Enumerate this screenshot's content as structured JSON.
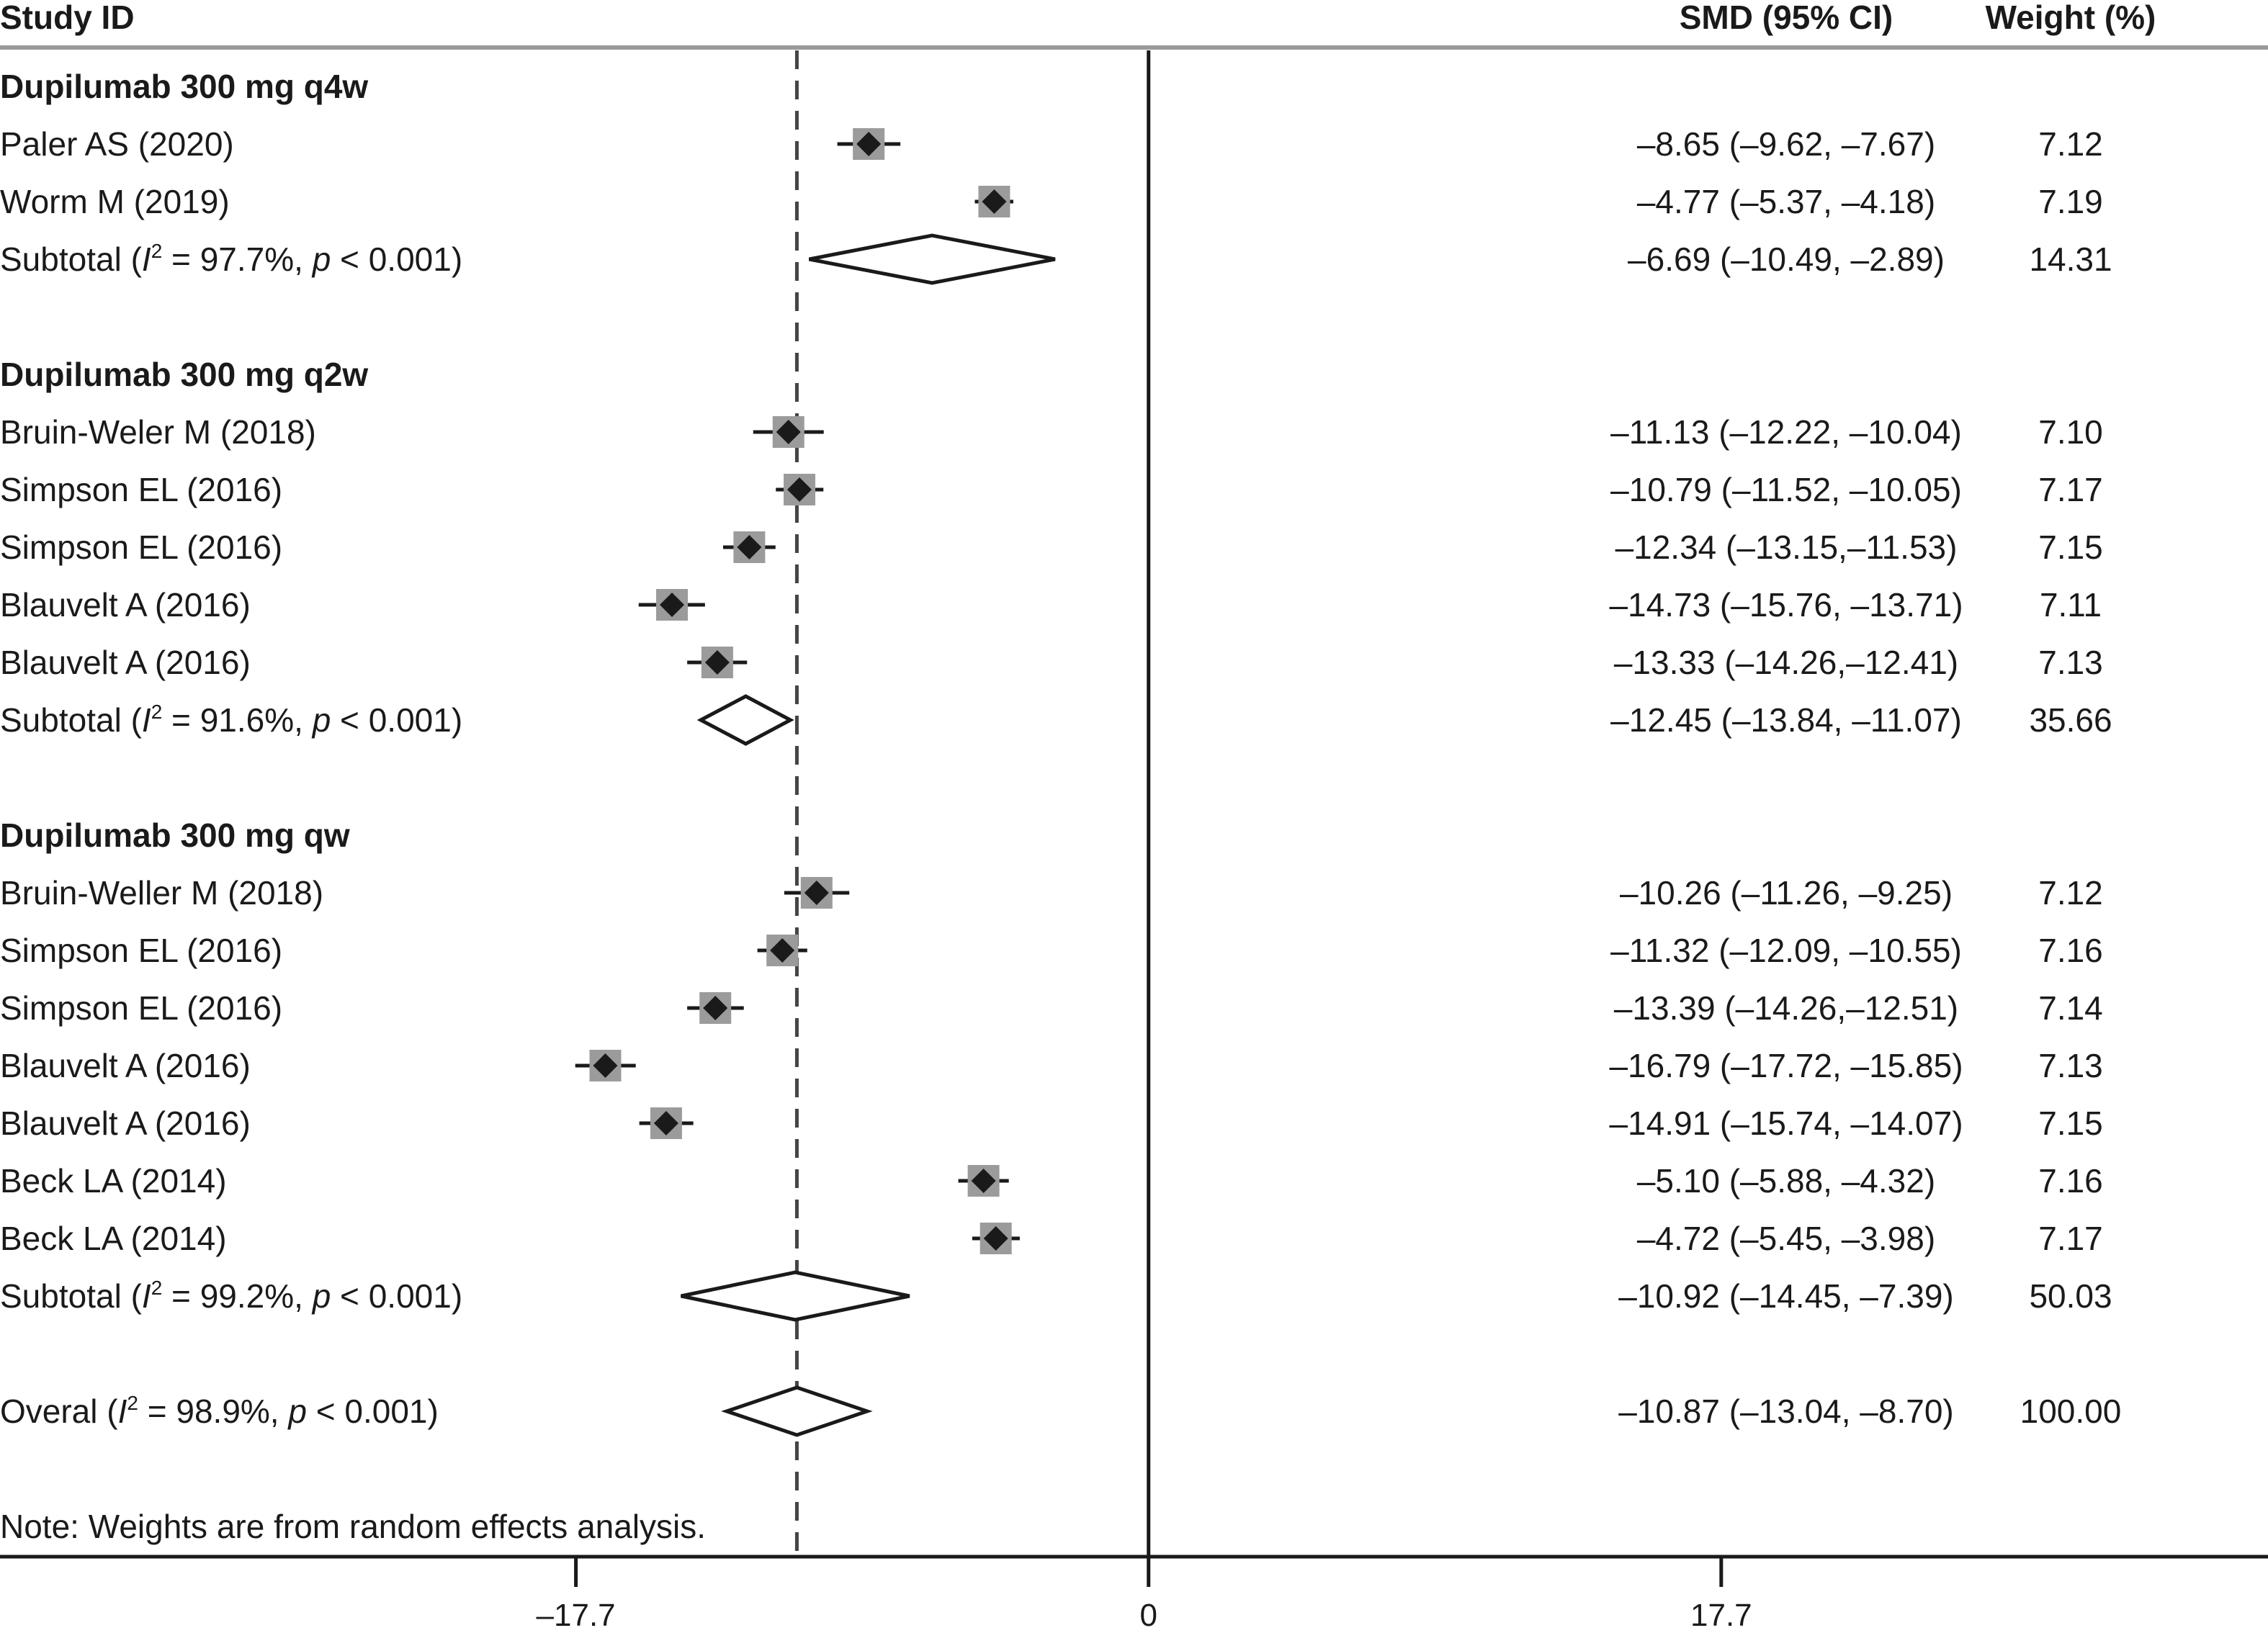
{
  "header": {
    "study_id": "Study ID",
    "smd": "SMD (95% CI)",
    "weight": "Weight (%)"
  },
  "note": "Note: Weights are from random effects analysis.",
  "chart_data": {
    "type": "forest",
    "x_ticks": [
      {
        "value": -17.7,
        "label": "–17.7"
      },
      {
        "value": 0,
        "label": "0"
      },
      {
        "value": 17.7,
        "label": "17.7"
      }
    ],
    "xlim": [
      -35.5,
      34.6
    ],
    "null_line": 0,
    "overall_line": -10.87,
    "rows": [
      {
        "kind": "group",
        "label": "Dupilumab 300 mg q4w"
      },
      {
        "kind": "study",
        "label": "Paler AS (2020)",
        "est": -8.65,
        "lo": -9.62,
        "hi": -7.67,
        "smd_text": "–8.65 (–9.62, –7.67)",
        "weight_text": "7.12"
      },
      {
        "kind": "study",
        "label": "Worm M (2019)",
        "est": -4.77,
        "lo": -5.37,
        "hi": -4.18,
        "smd_text": "–4.77 (–5.37, –4.18)",
        "weight_text": "7.19"
      },
      {
        "kind": "subtotal",
        "label_pre": "Subtotal (",
        "i": "I",
        "sup": "2",
        "label_mid": " = 97.7%, ",
        "p": "p",
        "label_post": " < 0.001)",
        "est": -6.69,
        "lo": -10.49,
        "hi": -2.89,
        "smd_text": "–6.69 (–10.49, –2.89)",
        "weight_text": "14.31"
      },
      {
        "kind": "blank"
      },
      {
        "kind": "group",
        "label": "Dupilumab 300 mg q2w"
      },
      {
        "kind": "study",
        "label": "Bruin-Weler M (2018)",
        "est": -11.13,
        "lo": -12.22,
        "hi": -10.04,
        "smd_text": "–11.13 (–12.22, –10.04)",
        "weight_text": "7.10"
      },
      {
        "kind": "study",
        "label": "Simpson EL (2016)",
        "est": -10.79,
        "lo": -11.52,
        "hi": -10.05,
        "smd_text": "–10.79 (–11.52, –10.05)",
        "weight_text": "7.17"
      },
      {
        "kind": "study",
        "label": "Simpson EL (2016)",
        "est": -12.34,
        "lo": -13.15,
        "hi": -11.53,
        "smd_text": "–12.34 (–13.15,–11.53)",
        "weight_text": "7.15"
      },
      {
        "kind": "study",
        "label": "Blauvelt A (2016)",
        "est": -14.73,
        "lo": -15.76,
        "hi": -13.71,
        "smd_text": "–14.73 (–15.76, –13.71)",
        "weight_text": "7.11"
      },
      {
        "kind": "study",
        "label": "Blauvelt A (2016)",
        "est": -13.33,
        "lo": -14.26,
        "hi": -12.41,
        "smd_text": "–13.33 (–14.26,–12.41)",
        "weight_text": "7.13"
      },
      {
        "kind": "subtotal",
        "label_pre": "Subtotal (",
        "i": "I",
        "sup": "2",
        "label_mid": " = 91.6%, ",
        "p": "p",
        "label_post": " < 0.001)",
        "est": -12.45,
        "lo": -13.84,
        "hi": -11.07,
        "smd_text": "–12.45 (–13.84, –11.07)",
        "weight_text": "35.66"
      },
      {
        "kind": "blank"
      },
      {
        "kind": "group",
        "label": "Dupilumab 300 mg qw"
      },
      {
        "kind": "study",
        "label": "Bruin-Weller M (2018)",
        "est": -10.26,
        "lo": -11.26,
        "hi": -9.25,
        "smd_text": "–10.26 (–11.26, –9.25)",
        "weight_text": "7.12"
      },
      {
        "kind": "study",
        "label": "Simpson EL (2016)",
        "est": -11.32,
        "lo": -12.09,
        "hi": -10.55,
        "smd_text": "–11.32 (–12.09, –10.55)",
        "weight_text": "7.16"
      },
      {
        "kind": "study",
        "label": "Simpson EL (2016)",
        "est": -13.39,
        "lo": -14.26,
        "hi": -12.51,
        "smd_text": "–13.39 (–14.26,–12.51)",
        "weight_text": "7.14"
      },
      {
        "kind": "study",
        "label": "Blauvelt A (2016)",
        "est": -16.79,
        "lo": -17.72,
        "hi": -15.85,
        "smd_text": "–16.79 (–17.72, –15.85)",
        "weight_text": "7.13"
      },
      {
        "kind": "study",
        "label": "Blauvelt A (2016)",
        "est": -14.91,
        "lo": -15.74,
        "hi": -14.07,
        "smd_text": "–14.91 (–15.74, –14.07)",
        "weight_text": "7.15"
      },
      {
        "kind": "study",
        "label": "Beck LA (2014)",
        "est": -5.1,
        "lo": -5.88,
        "hi": -4.32,
        "smd_text": "–5.10 (–5.88, –4.32)",
        "weight_text": "7.16"
      },
      {
        "kind": "study",
        "label": "Beck LA (2014)",
        "est": -4.72,
        "lo": -5.45,
        "hi": -3.98,
        "smd_text": "–4.72 (–5.45, –3.98)",
        "weight_text": "7.17"
      },
      {
        "kind": "subtotal",
        "label_pre": "Subtotal (",
        "i": "I",
        "sup": "2",
        "label_mid": " = 99.2%, ",
        "p": "p",
        "label_post": " < 0.001)",
        "est": -10.92,
        "lo": -14.45,
        "hi": -7.39,
        "smd_text": "–10.92 (–14.45, –7.39)",
        "weight_text": "50.03"
      },
      {
        "kind": "blank"
      },
      {
        "kind": "overall",
        "label_pre": "Overal (",
        "i": "I",
        "sup": "2",
        "label_mid": " = 98.9%, ",
        "p": "p",
        "label_post": " < 0.001)",
        "est": -10.87,
        "lo": -13.04,
        "hi": -8.7,
        "smd_text": "–10.87 (–13.04, –8.70)",
        "weight_text": "100.00"
      }
    ]
  }
}
